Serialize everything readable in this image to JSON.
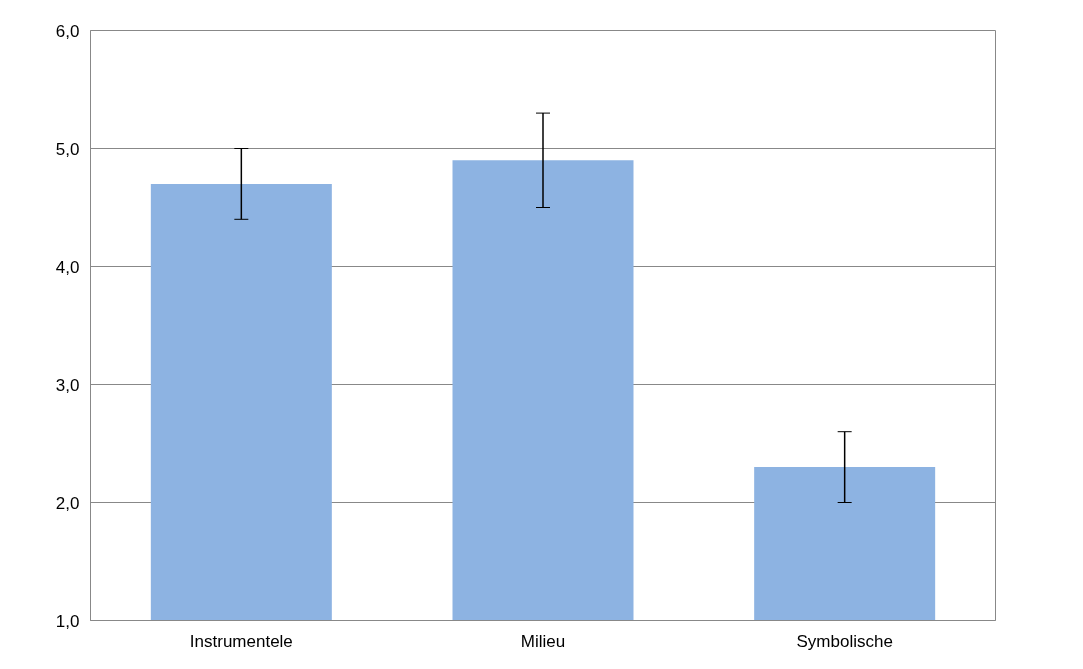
{
  "chart_data": {
    "type": "bar",
    "categories": [
      "Instrumentele",
      "Milieu",
      "Symbolische"
    ],
    "series": [
      {
        "color": "#8db3e2",
        "values": [
          4.7,
          4.9,
          2.3
        ],
        "errors": [
          0.3,
          0.4,
          0.3
        ]
      }
    ],
    "ylim": [
      1,
      6
    ],
    "yticks": [
      {
        "value": 1,
        "label": "1,0"
      },
      {
        "value": 2,
        "label": "2,0"
      },
      {
        "value": 3,
        "label": "3,0"
      },
      {
        "value": 4,
        "label": "4,0"
      },
      {
        "value": 5,
        "label": "5,0"
      },
      {
        "value": 6,
        "label": "6,0"
      }
    ],
    "grid": "y"
  }
}
